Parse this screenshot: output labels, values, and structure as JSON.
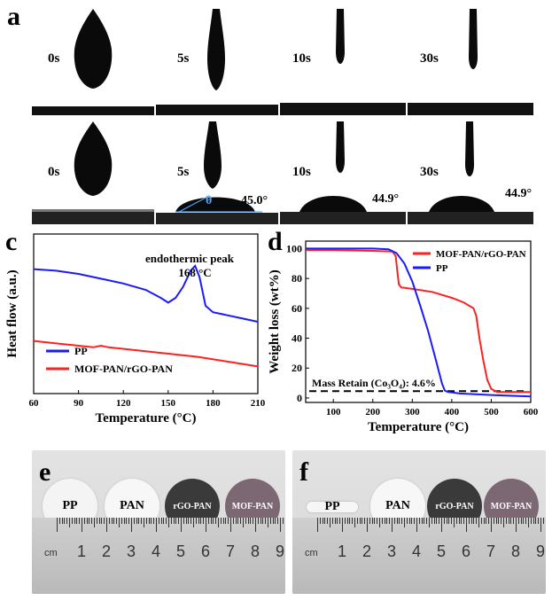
{
  "panel_labels": {
    "a": "a",
    "c": "c",
    "d": "d",
    "e": "e",
    "f": "f"
  },
  "panel_a": {
    "row1_times": [
      "0s",
      "5s",
      "10s",
      "30s"
    ],
    "row2_times": [
      "0s",
      "5s",
      "10s",
      "30s"
    ],
    "row2_angles": [
      "45.0°",
      "44.9°",
      "44.9°"
    ],
    "theta_symbol": "θ"
  },
  "chart_data": [
    {
      "type": "line",
      "panel": "c",
      "xlabel": "Temperature (°C)",
      "ylabel": "Heat flow (a.u.)",
      "xlim": [
        60,
        210
      ],
      "ylim": [
        0,
        100
      ],
      "xticks": [
        60,
        90,
        120,
        150,
        180,
        210
      ],
      "annotation": [
        "endothermic peak",
        "168 °C"
      ],
      "legend_position": "bottom-left",
      "series": [
        {
          "name": "PP",
          "color": "#1a1aff",
          "x": [
            60,
            75,
            90,
            105,
            120,
            135,
            145,
            150,
            155,
            160,
            165,
            168,
            171,
            175,
            180,
            190,
            200,
            210
          ],
          "y": [
            78,
            77,
            75,
            72,
            69,
            65,
            60,
            57,
            60,
            67,
            77,
            80,
            73,
            55,
            51,
            49,
            47,
            45
          ]
        },
        {
          "name": "MOF-PAN/rGO-PAN",
          "color": "#ff2020",
          "x": [
            60,
            80,
            100,
            105,
            110,
            130,
            150,
            170,
            190,
            210
          ],
          "y": [
            33,
            31,
            29,
            30,
            29,
            27,
            25,
            23,
            20,
            17
          ]
        }
      ]
    },
    {
      "type": "line",
      "panel": "d",
      "xlabel": "Temperature (°C)",
      "ylabel": "Weight loss (wt%)",
      "xlim": [
        30,
        600
      ],
      "ylim": [
        -3,
        105
      ],
      "xticks": [
        100,
        200,
        300,
        400,
        500,
        600
      ],
      "yticks": [
        0,
        20,
        40,
        60,
        80,
        100
      ],
      "annotation": "Mass Retain (Co₃O₄): 4.6%",
      "reference_line": 4.6,
      "legend_position": "top-right",
      "series": [
        {
          "name": "MOF-PAN/rGO-PAN",
          "color": "#ff2020",
          "x": [
            30,
            100,
            200,
            250,
            258,
            262,
            266,
            272,
            300,
            350,
            400,
            430,
            455,
            462,
            470,
            480,
            490,
            500,
            515,
            540,
            600
          ],
          "y": [
            99,
            99,
            98.5,
            98,
            95,
            85,
            76,
            74,
            73,
            71,
            67,
            64,
            60,
            55,
            40,
            25,
            12,
            6,
            4,
            4,
            4
          ]
        },
        {
          "name": "PP",
          "color": "#1a1aff",
          "x": [
            30,
            100,
            200,
            240,
            260,
            280,
            300,
            320,
            340,
            360,
            375,
            382,
            390,
            420,
            500,
            600
          ],
          "y": [
            100,
            100,
            100,
            99.5,
            97,
            90,
            78,
            62,
            45,
            25,
            10,
            5,
            4,
            3,
            2,
            1
          ]
        }
      ]
    }
  ],
  "panel_e": {
    "discs": [
      "PP",
      "PAN",
      "rGO-PAN",
      "MOF-PAN"
    ],
    "ruler_numbers": [
      "1",
      "2",
      "3",
      "4",
      "5",
      "6",
      "7",
      "8",
      "9"
    ],
    "ruler_unit": "cm"
  },
  "panel_f": {
    "discs": [
      "PP",
      "PAN",
      "rGO-PAN",
      "MOF-PAN"
    ],
    "ruler_numbers": [
      "1",
      "2",
      "3",
      "4",
      "5",
      "6",
      "7",
      "8",
      "9"
    ],
    "ruler_unit": "cm"
  }
}
